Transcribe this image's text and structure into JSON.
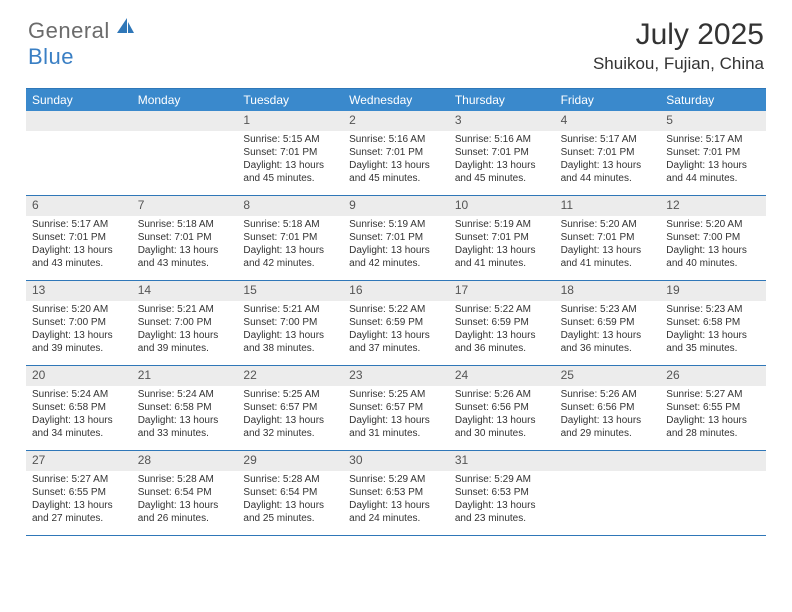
{
  "logo": {
    "general": "General",
    "blue": "Blue"
  },
  "title": "July 2025",
  "location": "Shuikou, Fujian, China",
  "colors": {
    "header_bar": "#3a89cc",
    "rule": "#2f77b8",
    "daynum_bg": "#ececec",
    "logo_blue": "#3a7fc4",
    "logo_grey": "#6b6b6b"
  },
  "weekdays": [
    "Sunday",
    "Monday",
    "Tuesday",
    "Wednesday",
    "Thursday",
    "Friday",
    "Saturday"
  ],
  "weeks": [
    [
      {
        "n": "",
        "sr": "",
        "ss": "",
        "dl": ""
      },
      {
        "n": "",
        "sr": "",
        "ss": "",
        "dl": ""
      },
      {
        "n": "1",
        "sr": "Sunrise: 5:15 AM",
        "ss": "Sunset: 7:01 PM",
        "dl": "Daylight: 13 hours and 45 minutes."
      },
      {
        "n": "2",
        "sr": "Sunrise: 5:16 AM",
        "ss": "Sunset: 7:01 PM",
        "dl": "Daylight: 13 hours and 45 minutes."
      },
      {
        "n": "3",
        "sr": "Sunrise: 5:16 AM",
        "ss": "Sunset: 7:01 PM",
        "dl": "Daylight: 13 hours and 45 minutes."
      },
      {
        "n": "4",
        "sr": "Sunrise: 5:17 AM",
        "ss": "Sunset: 7:01 PM",
        "dl": "Daylight: 13 hours and 44 minutes."
      },
      {
        "n": "5",
        "sr": "Sunrise: 5:17 AM",
        "ss": "Sunset: 7:01 PM",
        "dl": "Daylight: 13 hours and 44 minutes."
      }
    ],
    [
      {
        "n": "6",
        "sr": "Sunrise: 5:17 AM",
        "ss": "Sunset: 7:01 PM",
        "dl": "Daylight: 13 hours and 43 minutes."
      },
      {
        "n": "7",
        "sr": "Sunrise: 5:18 AM",
        "ss": "Sunset: 7:01 PM",
        "dl": "Daylight: 13 hours and 43 minutes."
      },
      {
        "n": "8",
        "sr": "Sunrise: 5:18 AM",
        "ss": "Sunset: 7:01 PM",
        "dl": "Daylight: 13 hours and 42 minutes."
      },
      {
        "n": "9",
        "sr": "Sunrise: 5:19 AM",
        "ss": "Sunset: 7:01 PM",
        "dl": "Daylight: 13 hours and 42 minutes."
      },
      {
        "n": "10",
        "sr": "Sunrise: 5:19 AM",
        "ss": "Sunset: 7:01 PM",
        "dl": "Daylight: 13 hours and 41 minutes."
      },
      {
        "n": "11",
        "sr": "Sunrise: 5:20 AM",
        "ss": "Sunset: 7:01 PM",
        "dl": "Daylight: 13 hours and 41 minutes."
      },
      {
        "n": "12",
        "sr": "Sunrise: 5:20 AM",
        "ss": "Sunset: 7:00 PM",
        "dl": "Daylight: 13 hours and 40 minutes."
      }
    ],
    [
      {
        "n": "13",
        "sr": "Sunrise: 5:20 AM",
        "ss": "Sunset: 7:00 PM",
        "dl": "Daylight: 13 hours and 39 minutes."
      },
      {
        "n": "14",
        "sr": "Sunrise: 5:21 AM",
        "ss": "Sunset: 7:00 PM",
        "dl": "Daylight: 13 hours and 39 minutes."
      },
      {
        "n": "15",
        "sr": "Sunrise: 5:21 AM",
        "ss": "Sunset: 7:00 PM",
        "dl": "Daylight: 13 hours and 38 minutes."
      },
      {
        "n": "16",
        "sr": "Sunrise: 5:22 AM",
        "ss": "Sunset: 6:59 PM",
        "dl": "Daylight: 13 hours and 37 minutes."
      },
      {
        "n": "17",
        "sr": "Sunrise: 5:22 AM",
        "ss": "Sunset: 6:59 PM",
        "dl": "Daylight: 13 hours and 36 minutes."
      },
      {
        "n": "18",
        "sr": "Sunrise: 5:23 AM",
        "ss": "Sunset: 6:59 PM",
        "dl": "Daylight: 13 hours and 36 minutes."
      },
      {
        "n": "19",
        "sr": "Sunrise: 5:23 AM",
        "ss": "Sunset: 6:58 PM",
        "dl": "Daylight: 13 hours and 35 minutes."
      }
    ],
    [
      {
        "n": "20",
        "sr": "Sunrise: 5:24 AM",
        "ss": "Sunset: 6:58 PM",
        "dl": "Daylight: 13 hours and 34 minutes."
      },
      {
        "n": "21",
        "sr": "Sunrise: 5:24 AM",
        "ss": "Sunset: 6:58 PM",
        "dl": "Daylight: 13 hours and 33 minutes."
      },
      {
        "n": "22",
        "sr": "Sunrise: 5:25 AM",
        "ss": "Sunset: 6:57 PM",
        "dl": "Daylight: 13 hours and 32 minutes."
      },
      {
        "n": "23",
        "sr": "Sunrise: 5:25 AM",
        "ss": "Sunset: 6:57 PM",
        "dl": "Daylight: 13 hours and 31 minutes."
      },
      {
        "n": "24",
        "sr": "Sunrise: 5:26 AM",
        "ss": "Sunset: 6:56 PM",
        "dl": "Daylight: 13 hours and 30 minutes."
      },
      {
        "n": "25",
        "sr": "Sunrise: 5:26 AM",
        "ss": "Sunset: 6:56 PM",
        "dl": "Daylight: 13 hours and 29 minutes."
      },
      {
        "n": "26",
        "sr": "Sunrise: 5:27 AM",
        "ss": "Sunset: 6:55 PM",
        "dl": "Daylight: 13 hours and 28 minutes."
      }
    ],
    [
      {
        "n": "27",
        "sr": "Sunrise: 5:27 AM",
        "ss": "Sunset: 6:55 PM",
        "dl": "Daylight: 13 hours and 27 minutes."
      },
      {
        "n": "28",
        "sr": "Sunrise: 5:28 AM",
        "ss": "Sunset: 6:54 PM",
        "dl": "Daylight: 13 hours and 26 minutes."
      },
      {
        "n": "29",
        "sr": "Sunrise: 5:28 AM",
        "ss": "Sunset: 6:54 PM",
        "dl": "Daylight: 13 hours and 25 minutes."
      },
      {
        "n": "30",
        "sr": "Sunrise: 5:29 AM",
        "ss": "Sunset: 6:53 PM",
        "dl": "Daylight: 13 hours and 24 minutes."
      },
      {
        "n": "31",
        "sr": "Sunrise: 5:29 AM",
        "ss": "Sunset: 6:53 PM",
        "dl": "Daylight: 13 hours and 23 minutes."
      },
      {
        "n": "",
        "sr": "",
        "ss": "",
        "dl": ""
      },
      {
        "n": "",
        "sr": "",
        "ss": "",
        "dl": ""
      }
    ]
  ]
}
